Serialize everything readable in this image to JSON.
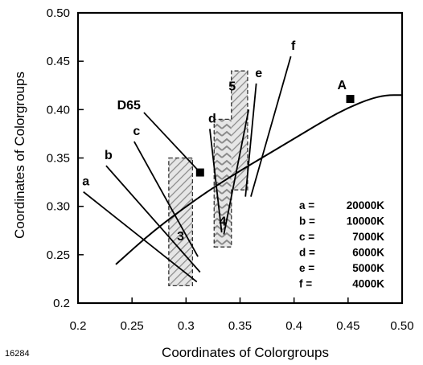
{
  "figure_id": "16284",
  "chart_data": {
    "type": "scatter",
    "xlabel": "Coordinates of Colorgroups",
    "ylabel": "Coordinates of Colorgroups",
    "xlim": [
      0.2,
      0.5
    ],
    "ylim": [
      0.2,
      0.5
    ],
    "x_ticks": [
      "0.2",
      "0.25",
      "0.3",
      "0.35",
      "0.4",
      "0.45",
      "0.50"
    ],
    "y_ticks": [
      "0.2",
      "0.25",
      "0.30",
      "0.35",
      "0.40",
      "0.45",
      "0.50"
    ],
    "grid": false,
    "curve": {
      "x": [
        0.235,
        0.27,
        0.31,
        0.34,
        0.37,
        0.4,
        0.43,
        0.45,
        0.47,
        0.485,
        0.5
      ],
      "y": [
        0.24,
        0.275,
        0.308,
        0.33,
        0.35,
        0.37,
        0.39,
        0.402,
        0.411,
        0.415,
        0.415
      ]
    },
    "points": [
      {
        "label": "D65",
        "x": 0.313,
        "y": 0.335
      },
      {
        "label": "A",
        "x": 0.452,
        "y": 0.411
      }
    ],
    "regions": [
      {
        "label": "3",
        "x": [
          0.284,
          0.306
        ],
        "y": [
          0.218,
          0.35
        ]
      },
      {
        "label": "4",
        "x": [
          0.326,
          0.342
        ],
        "y": [
          0.258,
          0.39
        ]
      },
      {
        "label": "5",
        "x": [
          0.342,
          0.357
        ],
        "y": [
          0.317,
          0.44
        ]
      }
    ],
    "region_outline": [
      [
        0.326,
        0.258
      ],
      [
        0.342,
        0.258
      ],
      [
        0.342,
        0.317
      ],
      [
        0.357,
        0.317
      ],
      [
        0.357,
        0.44
      ],
      [
        0.342,
        0.44
      ],
      [
        0.342,
        0.39
      ],
      [
        0.326,
        0.39
      ]
    ],
    "callouts": [
      {
        "label": "a",
        "from": [
          0.205,
          0.315
        ],
        "to": [
          0.31,
          0.222
        ]
      },
      {
        "label": "b",
        "from": [
          0.226,
          0.342
        ],
        "to": [
          0.313,
          0.232
        ]
      },
      {
        "label": "c",
        "from": [
          0.252,
          0.367
        ],
        "to": [
          0.311,
          0.248
        ]
      },
      {
        "label": "d",
        "from": [
          0.322,
          0.38
        ],
        "to": [
          0.333,
          0.273
        ]
      },
      {
        "label": "D65",
        "from": [
          0.261,
          0.397
        ],
        "to": [
          0.313,
          0.335
        ]
      },
      {
        "label": "5",
        "from": [
          0.358,
          0.4
        ],
        "to": [
          0.335,
          0.271
        ]
      },
      {
        "label": "e",
        "from": [
          0.365,
          0.427
        ],
        "to": [
          0.355,
          0.31
        ]
      },
      {
        "label": "f",
        "from": [
          0.397,
          0.455
        ],
        "to": [
          0.36,
          0.31
        ]
      }
    ],
    "legend": [
      {
        "key": "a =",
        "value": "20000K"
      },
      {
        "key": "b =",
        "value": "10000K"
      },
      {
        "key": "c =",
        "value": "7000K"
      },
      {
        "key": "d =",
        "value": "6000K"
      },
      {
        "key": "e =",
        "value": "5000K"
      },
      {
        "key": "f =",
        "value": "4000K"
      }
    ],
    "legend_position": "bottom-right"
  }
}
